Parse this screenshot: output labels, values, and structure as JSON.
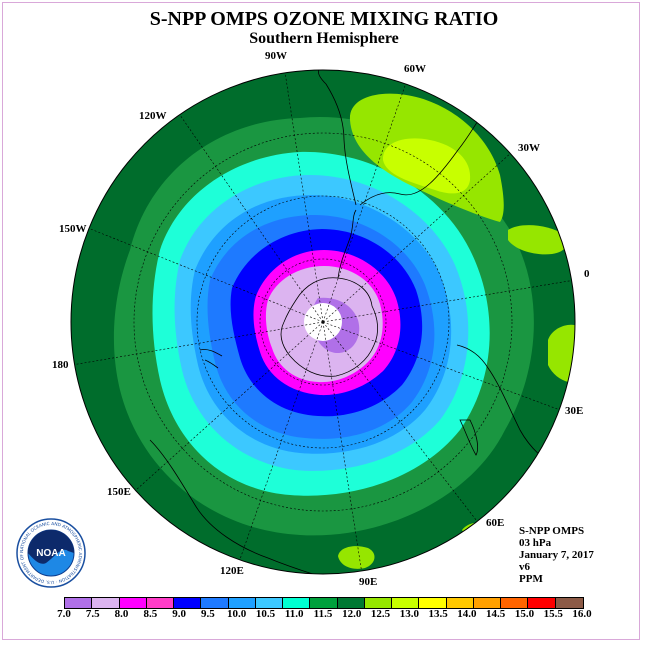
{
  "title": "S-NPP OMPS OZONE MIXING RATIO",
  "subtitle": "Southern Hemisphere",
  "longitude_labels": [
    {
      "id": "90w",
      "text": "90W"
    },
    {
      "id": "60w",
      "text": "60W"
    },
    {
      "id": "120w",
      "text": "120W"
    },
    {
      "id": "30w",
      "text": "30W"
    },
    {
      "id": "150w",
      "text": "150W"
    },
    {
      "id": "0",
      "text": "0"
    },
    {
      "id": "180",
      "text": "180"
    },
    {
      "id": "30e",
      "text": "30E"
    },
    {
      "id": "150e",
      "text": "150E"
    },
    {
      "id": "60e",
      "text": "60E"
    },
    {
      "id": "120e",
      "text": "120E"
    },
    {
      "id": "90e",
      "text": "90E"
    }
  ],
  "info": {
    "instrument": "S-NPP OMPS",
    "level": "03 hPa",
    "date": "January 7, 2017",
    "version": "v6",
    "units": "PPM"
  },
  "logo": {
    "text": "NOAA",
    "ring_text": "NATIONAL OCEANIC AND ATMOSPHERIC ADMINISTRATION · U.S. DEPARTMENT OF COMMERCE"
  },
  "colorbar": {
    "labels": [
      "7.0",
      "7.5",
      "8.0",
      "8.5",
      "9.0",
      "9.5",
      "10.0",
      "10.5",
      "11.0",
      "11.5",
      "12.0",
      "12.5",
      "13.0",
      "13.5",
      "14.0",
      "14.5",
      "15.0",
      "15.5",
      "16.0"
    ],
    "colors": [
      "#b070e8",
      "#dcb4f0",
      "#ff00ff",
      "#ff3cc8",
      "#0000ff",
      "#1e7aff",
      "#1ea0ff",
      "#3cc8ff",
      "#00ffd2",
      "#00a03c",
      "#007832",
      "#96e600",
      "#c8ff00",
      "#ffff00",
      "#ffc800",
      "#ffa000",
      "#ff6400",
      "#ff0000",
      "#8c5a46"
    ]
  },
  "map_colors": {
    "outer_green": "#2e8b3a",
    "dark_green": "#006d2c",
    "medium_green": "#1a9641",
    "cyan": "#1effd8",
    "light_blue": "#3cc8ff",
    "sky_blue": "#1ea0ff",
    "blue": "#1e7aff",
    "deep_blue": "#0000ff",
    "magenta": "#ff00ff",
    "lavender": "#dcb4f0",
    "purple": "#b070e8",
    "lime": "#96e600",
    "yellow_green": "#c8ff00"
  }
}
